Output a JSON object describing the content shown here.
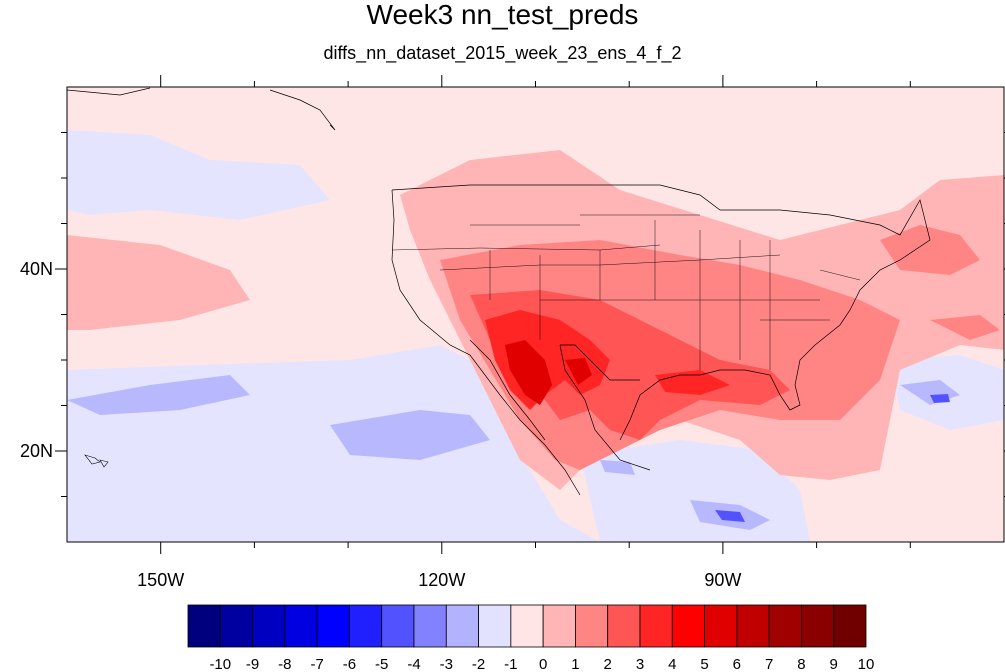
{
  "title": "Week3 nn_test_preds",
  "subtitle": "diffs_nn_dataset_2015_week_23_ens_4_f_2",
  "map": {
    "lon_range": [
      -160,
      -60
    ],
    "lat_range": [
      10,
      60
    ],
    "x_ticks": [
      {
        "lon": -150,
        "label": "150W"
      },
      {
        "lon": -120,
        "label": "120W"
      },
      {
        "lon": -90,
        "label": "90W"
      }
    ],
    "y_ticks": [
      {
        "lat": 40,
        "label": "40N"
      },
      {
        "lat": 20,
        "label": "20N"
      }
    ]
  },
  "colorbar": {
    "labels": [
      "-10",
      "-9",
      "-8",
      "-7",
      "-6",
      "-5",
      "-4",
      "-3",
      "-2",
      "-1",
      "0",
      "1",
      "2",
      "3",
      "4",
      "5",
      "6",
      "7",
      "8",
      "9",
      "10"
    ],
    "colors": [
      "#00007f",
      "#0000a0",
      "#0000c0",
      "#0000e0",
      "#0000ff",
      "#2020ff",
      "#5252ff",
      "#8282ff",
      "#b2b2ff",
      "#e2e2ff",
      "#ffe5e5",
      "#ffb5b5",
      "#ff8585",
      "#ff5555",
      "#ff2525",
      "#ff0000",
      "#e00000",
      "#c00000",
      "#a00000",
      "#8a0000",
      "#700000"
    ]
  }
}
